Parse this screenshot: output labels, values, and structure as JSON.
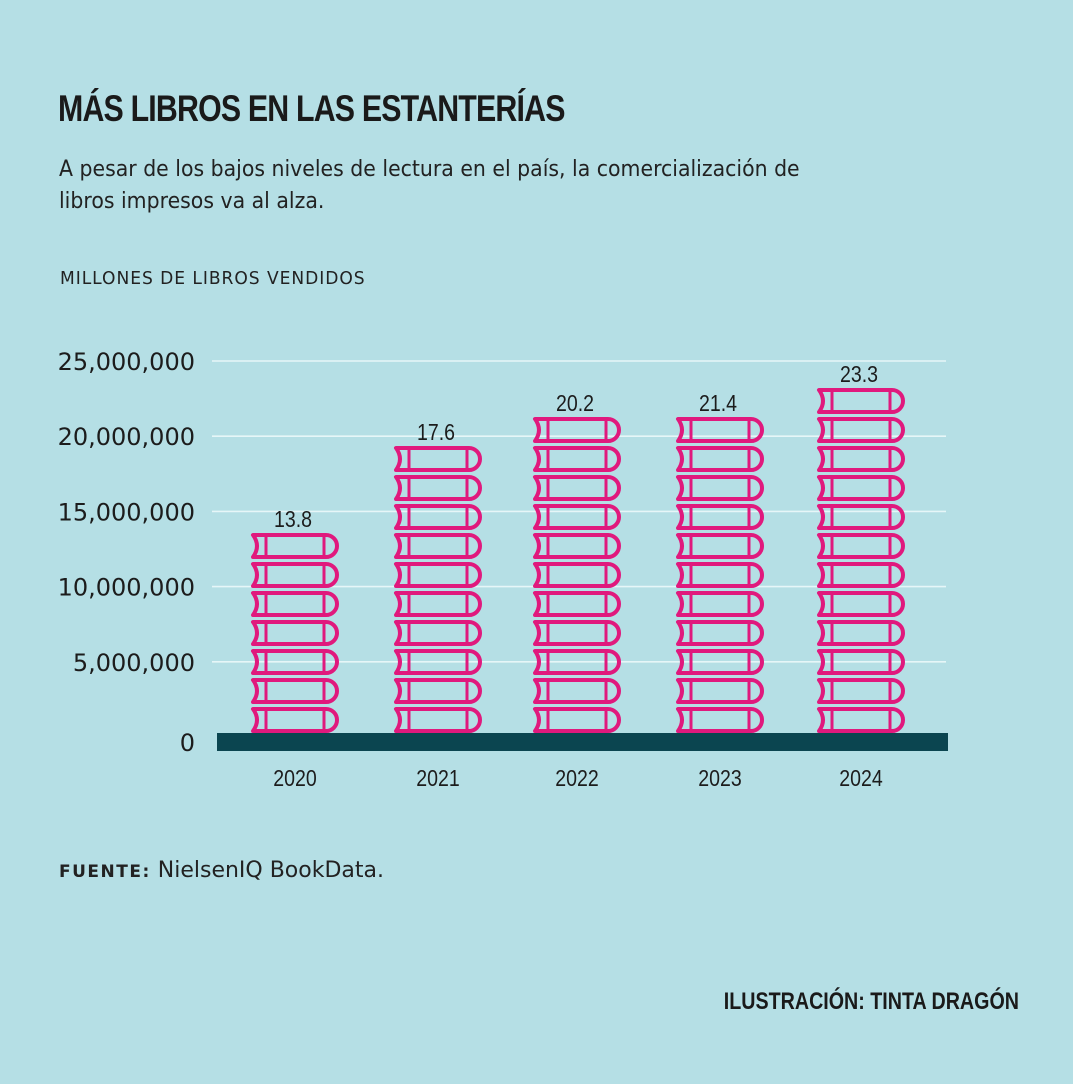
{
  "header": {
    "title": "MÁS LIBROS EN LAS ESTANTERÍAS",
    "subtitle": "A pesar de los bajos niveles de lectura en el país, la comercialización de libros impresos va al alza.",
    "unit_label": "MILLONES DE LIBROS VENDIDOS"
  },
  "footer": {
    "source_label": "FUENTE:",
    "source_text": " NielsenIQ BookData.",
    "credit": "ILUSTRACIÓN: TINTA DRAGÓN"
  },
  "colors": {
    "background": "#b5dfe5",
    "book": "#e0197d",
    "baseline": "#0b4550",
    "gridline": "#e6f6f8",
    "text": "#1c1c1c"
  },
  "chart_data": {
    "type": "bar",
    "style": "pictogram-book-stacks",
    "title": "MÁS LIBROS EN LAS ESTANTERÍAS",
    "ylabel": "MILLONES DE LIBROS VENDIDOS",
    "xlabel": "",
    "categories": [
      "2020",
      "2021",
      "2022",
      "2023",
      "2024"
    ],
    "values": [
      13.8,
      17.6,
      20.2,
      21.4,
      23.3
    ],
    "value_labels": [
      "13.8",
      "17.6",
      "20.2",
      "21.4",
      "23.3"
    ],
    "books_per_stack": [
      7,
      10,
      11,
      11,
      12
    ],
    "units": "millions of books",
    "yticks": [
      0,
      5000000,
      10000000,
      15000000,
      20000000,
      25000000
    ],
    "ytick_labels": [
      "0",
      "5,000,000",
      "10,000,000",
      "15,000,000",
      "20,000,000",
      "25,000,000"
    ],
    "ylim": [
      0,
      25000000
    ],
    "grid": true,
    "legend": "none"
  }
}
